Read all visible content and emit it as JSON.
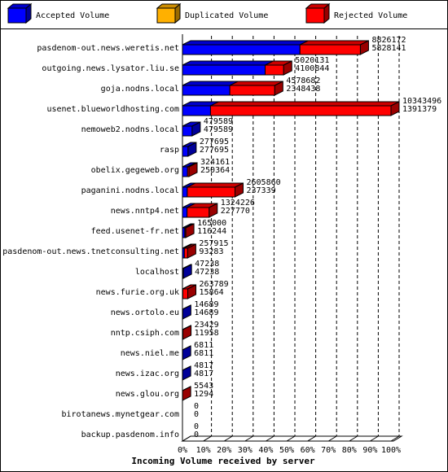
{
  "chart_data": {
    "type": "bar",
    "orientation": "horizontal",
    "stacked": true,
    "title": "Incoming Volume received by server",
    "categories": [
      "pasdenom-out.news.weretis.net",
      "outgoing.news.lysator.liu.se",
      "goja.nodns.local",
      "usenet.blueworldhosting.com",
      "nemoweb2.nodns.local",
      "rasp",
      "obelix.gegeweb.org",
      "paganini.nodns.local",
      "news.nntp4.net",
      "feed.usenet-fr.net",
      "pasdenom-out.news.tnetconsulting.net",
      "localhost",
      "news.furie.org.uk",
      "news.ortolo.eu",
      "nntp.csiph.com",
      "news.niel.me",
      "news.izac.org",
      "news.glou.org",
      "birotanews.mynetgear.com",
      "backup.pasdenom.info"
    ],
    "totals": [
      8826172,
      5020131,
      4578682,
      10343496,
      479589,
      277695,
      324161,
      2605860,
      1324226,
      165000,
      257915,
      47238,
      263789,
      14689,
      23429,
      6811,
      4817,
      5543,
      0,
      0
    ],
    "series": [
      {
        "name": "Accepted Volume",
        "color": "#0000ff",
        "values": [
          5828141,
          4100844,
          2348438,
          1391379,
          479589,
          277695,
          250364,
          237339,
          227770,
          116244,
          93283,
          47238,
          15864,
          14689,
          11958,
          6811,
          4817,
          1294,
          0,
          0
        ]
      },
      {
        "name": "Duplicated Volume",
        "color": "#ffb000",
        "values": [
          0,
          0,
          0,
          0,
          0,
          0,
          0,
          0,
          0,
          0,
          0,
          0,
          0,
          0,
          0,
          0,
          0,
          0,
          0,
          0
        ]
      },
      {
        "name": "Rejected Volume",
        "color": "#ff0000",
        "values": [
          2998031,
          919287,
          2230244,
          8952117,
          0,
          0,
          73797,
          2368521,
          1096456,
          48756,
          164632,
          0,
          247925,
          0,
          11471,
          0,
          0,
          4249,
          0,
          0
        ]
      }
    ],
    "xlim": [
      0,
      10343496
    ],
    "xticks": [
      {
        "value": 0,
        "label": "0%"
      },
      {
        "value": 1034349.6,
        "label": "10%"
      },
      {
        "value": 2068699.2,
        "label": "20%"
      },
      {
        "value": 3103048.8,
        "label": "30%"
      },
      {
        "value": 4137398.4,
        "label": "40%"
      },
      {
        "value": 5171748,
        "label": "50%"
      },
      {
        "value": 6206097.6,
        "label": "60%"
      },
      {
        "value": 7240447.2,
        "label": "70%"
      },
      {
        "value": 8274796.8,
        "label": "80%"
      },
      {
        "value": 9309146.4,
        "label": "90%"
      },
      {
        "value": 10343496,
        "label": "100%"
      }
    ],
    "grid": true
  }
}
